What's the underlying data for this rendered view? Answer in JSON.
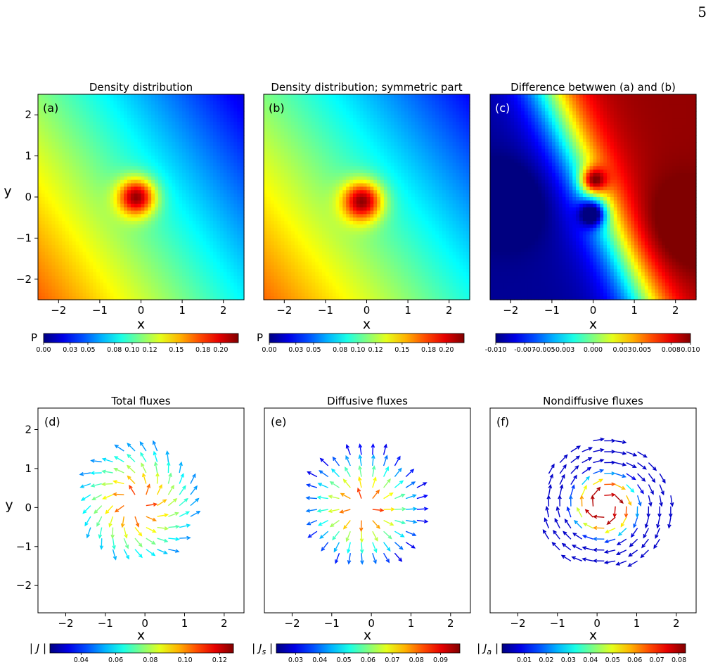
{
  "page_number": "5",
  "chart_data": [
    {
      "panel": "(a)",
      "type": "heatmap",
      "title": "Density distribution",
      "xlabel": "x",
      "ylabel": "y",
      "xlim": [
        -2.5,
        2.5
      ],
      "ylim": [
        -2.5,
        2.5
      ],
      "xticks": [
        "−2",
        "−1",
        "0",
        "1",
        "2"
      ],
      "yticks": [
        "2",
        "1",
        "0",
        "−1",
        "−2"
      ],
      "peak": {
        "x": -0.1,
        "y": 0.0,
        "value": 0.22
      },
      "colorbar": {
        "label": "P",
        "colormap": "jet",
        "range": [
          0.0,
          0.22
        ],
        "ticks": [
          "0.00",
          "0.03",
          "0.05",
          "0.08",
          "0.10",
          "0.12",
          "0.15",
          "0.18",
          "0.20"
        ]
      }
    },
    {
      "panel": "(b)",
      "type": "heatmap",
      "title": "Density distribution; symmetric part",
      "xlabel": "x",
      "ylabel": "",
      "xlim": [
        -2.5,
        2.5
      ],
      "ylim": [
        -2.5,
        2.5
      ],
      "xticks": [
        "−2",
        "−1",
        "0",
        "1",
        "2"
      ],
      "peak": {
        "x": -0.1,
        "y": -0.1,
        "value": 0.22
      },
      "colorbar": {
        "label": "P",
        "colormap": "jet",
        "range": [
          0.0,
          0.22
        ],
        "ticks": [
          "0.00",
          "0.03",
          "0.05",
          "0.08",
          "0.10",
          "0.12",
          "0.15",
          "0.18",
          "0.20"
        ]
      }
    },
    {
      "panel": "(c)",
      "type": "heatmap",
      "title": "Difference betwwen (a) and (b)",
      "xlabel": "x",
      "ylabel": "",
      "xlim": [
        -2.5,
        2.5
      ],
      "ylim": [
        -2.5,
        2.5
      ],
      "xticks": [
        "−2",
        "−1",
        "0",
        "1",
        "2"
      ],
      "extrema": [
        {
          "x": 0.0,
          "y": 0.4,
          "value": 0.01
        },
        {
          "x": 0.0,
          "y": -0.4,
          "value": -0.01
        },
        {
          "x": -2.0,
          "y": -0.1,
          "value": -0.01
        },
        {
          "x": 2.0,
          "y": -0.8,
          "value": 0.01
        }
      ],
      "colorbar": {
        "label": "",
        "colormap": "jet",
        "range": [
          -0.01,
          0.01
        ],
        "ticks": [
          "-0.010",
          "-0.007",
          "-0.005",
          "-0.003",
          "0.000",
          "0.003",
          "0.005",
          "0.008",
          "0.010"
        ]
      }
    },
    {
      "panel": "(d)",
      "type": "quiver",
      "title": "Total fluxes",
      "xlabel": "x",
      "ylabel": "y",
      "xlim": [
        -2.7,
        2.5
      ],
      "ylim": [
        -2.7,
        2.55
      ],
      "xticks": [
        "−2",
        "−1",
        "0",
        "1",
        "2"
      ],
      "yticks": [
        "2",
        "1",
        "0",
        "−1",
        "−2"
      ],
      "field": "radial outward plus counter-clockwise rotation",
      "center": {
        "x": -0.2,
        "y": 0.1
      },
      "radius": 1.45,
      "colorbar": {
        "label": "| J |",
        "colormap": "jet",
        "range": [
          0.022,
          0.128
        ],
        "ticks": [
          "0.04",
          "0.06",
          "0.08",
          "0.10",
          "0.12"
        ]
      }
    },
    {
      "panel": "(e)",
      "type": "quiver",
      "title": "Diffusive fluxes",
      "xlabel": "x",
      "ylabel": "",
      "xlim": [
        -2.7,
        2.5
      ],
      "ylim": [
        -2.7,
        2.55
      ],
      "xticks": [
        "−2",
        "−1",
        "0",
        "1",
        "2"
      ],
      "field": "radial outward",
      "center": {
        "x": -0.2,
        "y": 0.0
      },
      "radius": 1.45,
      "colorbar": {
        "label": "| Js |",
        "colormap": "jet",
        "range": [
          0.022,
          0.098
        ],
        "ticks": [
          "0.03",
          "0.04",
          "0.05",
          "0.06",
          "0.07",
          "0.08",
          "0.09"
        ]
      }
    },
    {
      "panel": "(f)",
      "type": "quiver",
      "title": "Nondiffusive fluxes",
      "xlabel": "x",
      "ylabel": "",
      "xlim": [
        -2.7,
        2.5
      ],
      "ylim": [
        -2.7,
        2.55
      ],
      "xticks": [
        "−2",
        "−1",
        "0",
        "1",
        "2"
      ],
      "field": "clockwise circulation",
      "center": {
        "x": 0.2,
        "y": 0.05
      },
      "radius": 1.7,
      "colorbar": {
        "label": "| Ja |",
        "colormap": "jet",
        "range": [
          0.0,
          0.083
        ],
        "ticks": [
          "0.01",
          "0.02",
          "0.03",
          "0.04",
          "0.05",
          "0.06",
          "0.07",
          "0.08"
        ]
      }
    }
  ]
}
